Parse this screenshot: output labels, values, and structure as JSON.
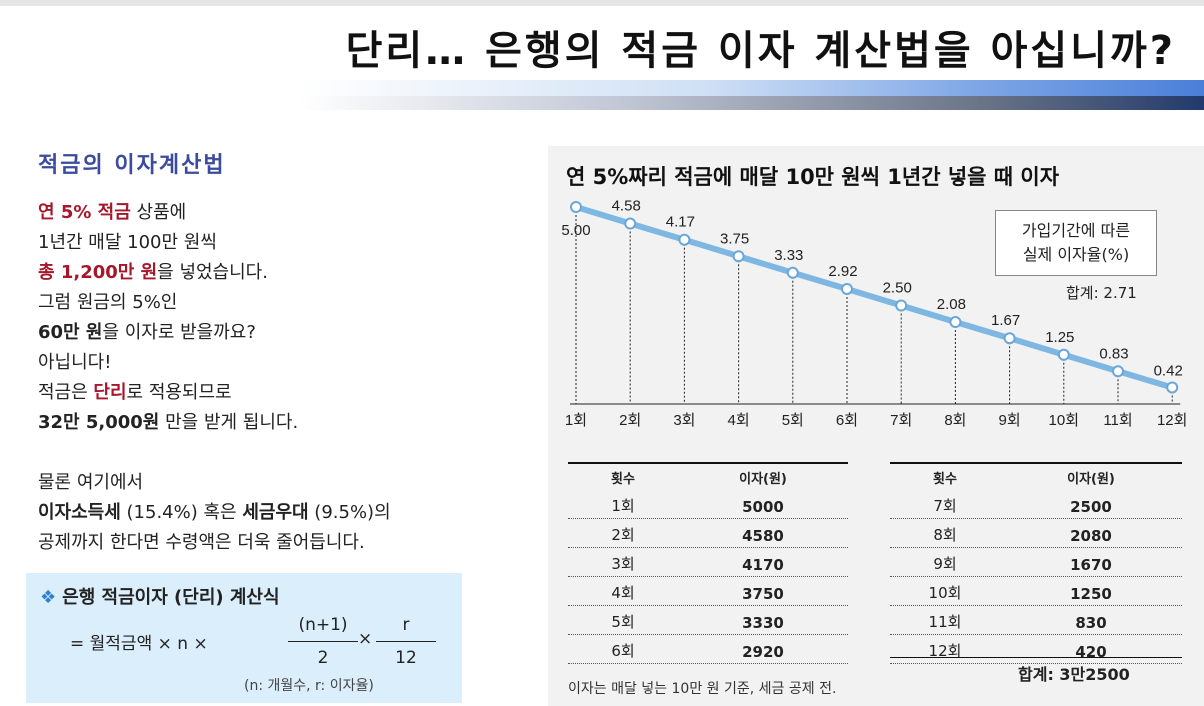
{
  "header": {
    "title": "단리… 은행의 적금 이자 계산법을 아십니까?"
  },
  "left": {
    "heading": "적금의 이자계산법",
    "p1_l1_red": "연 5% 적금",
    "p1_l1_rest": " 상품에",
    "p1_l2": "1년간 매달 100만 원씩",
    "p1_l3_red": "총 1,200만 원",
    "p1_l3_rest": "을 넣었습니다.",
    "p1_l4": "그럼 원금의 5%인",
    "p1_l5_bold": "60만 원",
    "p1_l5_rest": "을 이자로 받을까요?",
    "p1_l6": "아닙니다!",
    "p1_l7_a": "적금은 ",
    "p1_l7_red": "단리",
    "p1_l7_b": "로 적용되므로",
    "p1_l8_bold": "32만 5,000원",
    "p1_l8_rest": " 만을 받게 됩니다.",
    "p2_l1": "물론 여기에서",
    "p2_l2_bold1": "이자소득세",
    "p2_l2_a": " (15.4%) 혹은 ",
    "p2_l2_bold2": "세금우대",
    "p2_l2_b": " (9.5%)의",
    "p2_l3": "공제까지 한다면 수령액은 더욱 줄어듭니다."
  },
  "formula": {
    "diamond": "❖",
    "heading": "은행 적금이자 (단리) 계산식",
    "lhs": "= 월적금액 × n ×",
    "num1": "(n+1)",
    "den1": "2",
    "times": "×",
    "num2": "r",
    "den2": "12",
    "note": "(n: 개월수, r: 이자율)"
  },
  "chart_data": {
    "type": "line",
    "title": "연 5%짜리 적금에 매달 10만 원씩 1년간 넣을 때 이자",
    "x": [
      "1회",
      "2회",
      "3회",
      "4회",
      "5회",
      "6회",
      "7회",
      "8회",
      "9회",
      "10회",
      "11회",
      "12회"
    ],
    "values": [
      5.0,
      4.58,
      4.17,
      3.75,
      3.33,
      2.92,
      2.5,
      2.08,
      1.67,
      1.25,
      0.83,
      0.42
    ],
    "value_labels": [
      "5.00",
      "4.58",
      "4.17",
      "3.75",
      "3.33",
      "2.92",
      "2.50",
      "2.08",
      "1.67",
      "1.25",
      "0.83",
      "0.42"
    ],
    "legend_box": [
      "가입기간에 따른",
      "실제 이자율(%)"
    ],
    "total_label": "합계: 2.71",
    "line_color": "#7fb7e3"
  },
  "table": {
    "col_header_count": "횟수",
    "col_header_interest": "이자(원)",
    "left_rows": [
      [
        "1회",
        "5000"
      ],
      [
        "2회",
        "4580"
      ],
      [
        "3회",
        "4170"
      ],
      [
        "4회",
        "3750"
      ],
      [
        "5회",
        "3330"
      ],
      [
        "6회",
        "2920"
      ]
    ],
    "right_rows": [
      [
        "7회",
        "2500"
      ],
      [
        "8회",
        "2080"
      ],
      [
        "9회",
        "1670"
      ],
      [
        "10회",
        "1250"
      ],
      [
        "11회",
        "830"
      ],
      [
        "12회",
        "420"
      ]
    ],
    "total": "합계: 3만2500"
  },
  "footnote": "이자는 매달 넣는 10만 원 기준, 세금 공제 전."
}
